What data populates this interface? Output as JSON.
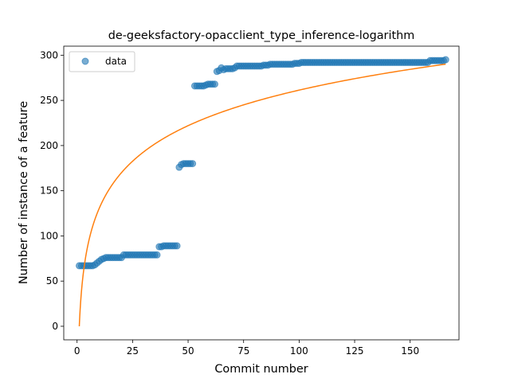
{
  "chart_data": {
    "type": "scatter",
    "title": "de-geeksfactory-opacclient_type_inference-logarithm",
    "xlabel": "Commit number",
    "ylabel": "Number of instance of a feature",
    "xlim": [
      -6,
      172
    ],
    "ylim": [
      -15,
      310
    ],
    "xticks": [
      0,
      25,
      50,
      75,
      100,
      125,
      150
    ],
    "yticks": [
      0,
      50,
      100,
      150,
      200,
      250,
      300
    ],
    "grid": false,
    "legend": {
      "placement": "top-left",
      "entries": [
        "data"
      ]
    },
    "colors": {
      "data": "#1f77b4",
      "fit": "#ff7f0e"
    },
    "series": [
      {
        "name": "data",
        "kind": "scatter",
        "x": [
          1,
          2,
          3,
          4,
          5,
          6,
          7,
          8,
          9,
          10,
          11,
          12,
          13,
          14,
          15,
          16,
          17,
          18,
          19,
          20,
          21,
          22,
          23,
          24,
          25,
          26,
          27,
          28,
          29,
          30,
          31,
          32,
          33,
          34,
          35,
          36,
          37,
          38,
          39,
          40,
          41,
          42,
          43,
          44,
          45,
          46,
          47,
          48,
          49,
          50,
          51,
          52,
          53,
          54,
          55,
          56,
          57,
          58,
          59,
          60,
          61,
          62,
          63,
          64,
          65,
          66,
          67,
          68,
          69,
          70,
          71,
          72,
          73,
          74,
          75,
          76,
          77,
          78,
          79,
          80,
          81,
          82,
          83,
          84,
          85,
          86,
          87,
          88,
          89,
          90,
          91,
          92,
          93,
          94,
          95,
          96,
          97,
          98,
          99,
          100,
          101,
          102,
          103,
          104,
          105,
          106,
          107,
          108,
          109,
          110,
          111,
          112,
          113,
          114,
          115,
          116,
          117,
          118,
          119,
          120,
          121,
          122,
          123,
          124,
          125,
          126,
          127,
          128,
          129,
          130,
          131,
          132,
          133,
          134,
          135,
          136,
          137,
          138,
          139,
          140,
          141,
          142,
          143,
          144,
          145,
          146,
          147,
          148,
          149,
          150,
          151,
          152,
          153,
          154,
          155,
          156,
          157,
          158,
          159,
          160,
          161,
          162,
          163,
          164,
          165,
          166
        ],
        "y": [
          67,
          67,
          67,
          67,
          67,
          67,
          67,
          68,
          70,
          72,
          74,
          75,
          76,
          76,
          76,
          76,
          76,
          76,
          76,
          76,
          79,
          79,
          79,
          79,
          79,
          79,
          79,
          79,
          79,
          79,
          79,
          79,
          79,
          79,
          79,
          79,
          88,
          88,
          89,
          89,
          89,
          89,
          89,
          89,
          89,
          176,
          179,
          180,
          180,
          180,
          180,
          180,
          266,
          266,
          266,
          266,
          266,
          267,
          268,
          268,
          268,
          268,
          282,
          283,
          286,
          284,
          285,
          285,
          285,
          285,
          286,
          288,
          288,
          288,
          288,
          288,
          288,
          288,
          288,
          288,
          288,
          288,
          288,
          289,
          289,
          289,
          290,
          290,
          290,
          290,
          290,
          290,
          290,
          290,
          290,
          290,
          290,
          291,
          291,
          291,
          292,
          292,
          292,
          292,
          292,
          292,
          292,
          292,
          292,
          292,
          292,
          292,
          292,
          292,
          292,
          292,
          292,
          292,
          292,
          292,
          292,
          292,
          292,
          292,
          292,
          292,
          292,
          292,
          292,
          292,
          292,
          292,
          292,
          292,
          292,
          292,
          292,
          292,
          292,
          292,
          292,
          292,
          292,
          292,
          292,
          292,
          292,
          292,
          292,
          292,
          292,
          292,
          292,
          292,
          292,
          292,
          292,
          292,
          294,
          294,
          294,
          294,
          294,
          294,
          294,
          295
        ]
      },
      {
        "name": "fit",
        "kind": "line",
        "model": "logarithm",
        "coef_a": 56.75,
        "coef_b": 0,
        "x_start": 1,
        "x_end": 166
      }
    ]
  }
}
